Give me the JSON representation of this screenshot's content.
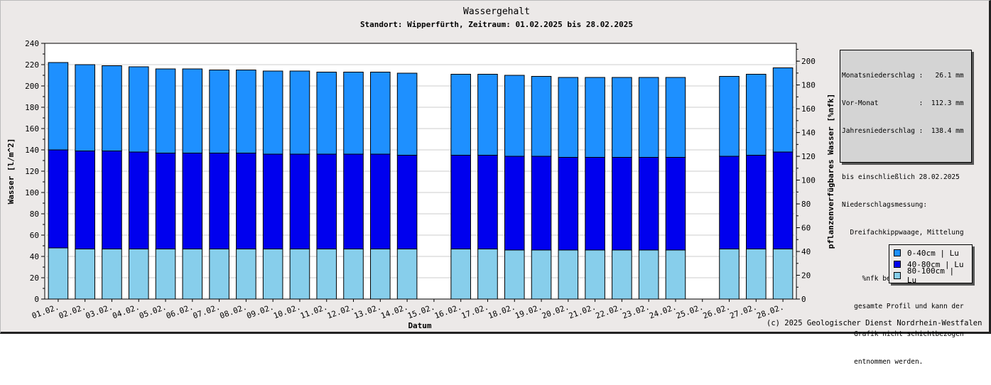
{
  "chart_data": {
    "type": "bar",
    "stacked": true,
    "title": "Wassergehalt",
    "subtitle": "Standort: Wipperfürth, Zeitraum: 01.02.2025 bis 28.02.2025",
    "xlabel": "Datum",
    "ylabel": "Wasser [l/m^2]",
    "y2label": "pflanzenverfügbares Wasser [%nfk]",
    "ylim": [
      0,
      240
    ],
    "y2lim": [
      0,
      215
    ],
    "yticks": [
      "0",
      "20",
      "40",
      "60",
      "80",
      "100",
      "120",
      "140",
      "160",
      "180",
      "200",
      "220",
      "240"
    ],
    "y2ticks": [
      "0",
      "20",
      "40",
      "60",
      "80",
      "100",
      "120",
      "140",
      "160",
      "180",
      "200"
    ],
    "grid": true,
    "categories": [
      "01.02.",
      "02.02.",
      "03.02.",
      "04.02.",
      "05.02.",
      "06.02.",
      "07.02.",
      "08.02.",
      "09.02.",
      "10.02.",
      "11.02.",
      "12.02.",
      "13.02.",
      "14.02.",
      "15.02.",
      "16.02.",
      "17.02.",
      "18.02.",
      "19.02.",
      "20.02.",
      "21.02.",
      "22.02.",
      "23.02.",
      "24.02.",
      "25.02.",
      "26.02.",
      "27.02.",
      "28.02."
    ],
    "series": [
      {
        "name": "80-100cm | Lu",
        "color": "#87ceeb",
        "values": [
          48,
          47,
          47,
          47,
          47,
          47,
          47,
          47,
          47,
          47,
          47,
          47,
          47,
          47,
          null,
          47,
          47,
          46,
          46,
          46,
          46,
          46,
          46,
          46,
          null,
          47,
          47,
          47
        ]
      },
      {
        "name": "40-80cm | Lu",
        "color": "#0000ee",
        "values": [
          92,
          92,
          92,
          91,
          90,
          90,
          90,
          90,
          89,
          89,
          89,
          89,
          89,
          88,
          null,
          88,
          88,
          88,
          88,
          87,
          87,
          87,
          87,
          87,
          null,
          87,
          88,
          91
        ]
      },
      {
        "name": "0-40cm | Lu",
        "color": "#1e90ff",
        "values": [
          82,
          81,
          80,
          80,
          79,
          79,
          78,
          78,
          78,
          78,
          77,
          77,
          77,
          77,
          null,
          76,
          76,
          76,
          75,
          75,
          75,
          75,
          75,
          75,
          null,
          75,
          76,
          79
        ]
      }
    ],
    "legend_placement": "bottom-right"
  },
  "info": {
    "line1": "Monatsniederschlag :   26.1 mm",
    "line2": "Vor-Monat          :  112.3 mm",
    "line3": "Jahresniederschlag :  138.4 mm",
    "line4": "",
    "line5": "bis einschließlich 28.02.2025",
    "line6": "Niederschlagsmessung:",
    "line7": "  Dreifachkippwaage, Mittelung",
    "line8": "",
    "line9": "     %nfk bezieht sich auf das",
    "line10": "   gesamte Profil und kann der",
    "line11": "   Grafik nicht schichtbezogen",
    "line12": "   entnommen werden."
  },
  "legend": [
    {
      "label": "0-40cm | Lu",
      "color": "#1e90ff"
    },
    {
      "label": "40-80cm | Lu",
      "color": "#0000ee"
    },
    {
      "label": "80-100cm | Lu",
      "color": "#87ceeb"
    }
  ],
  "copyright": "(c) 2025 Geologischer Dienst Nordrhein-Westfalen"
}
